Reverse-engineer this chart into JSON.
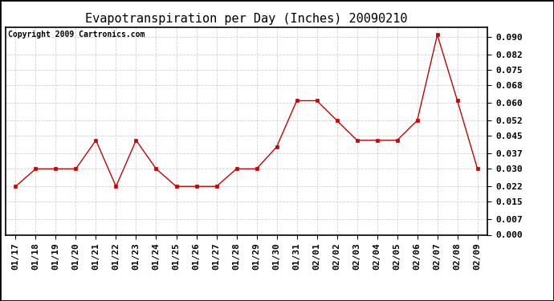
{
  "title": "Evapotranspiration per Day (Inches) 20090210",
  "copyright": "Copyright 2009 Cartronics.com",
  "x_labels": [
    "01/17",
    "01/18",
    "01/19",
    "01/20",
    "01/21",
    "01/22",
    "01/23",
    "01/24",
    "01/25",
    "01/26",
    "01/27",
    "01/28",
    "01/29",
    "01/30",
    "01/31",
    "02/01",
    "02/02",
    "02/03",
    "02/04",
    "02/05",
    "02/06",
    "02/07",
    "02/08",
    "02/09"
  ],
  "y_values": [
    0.022,
    0.03,
    0.03,
    0.03,
    0.043,
    0.022,
    0.043,
    0.03,
    0.022,
    0.022,
    0.022,
    0.03,
    0.03,
    0.04,
    0.061,
    0.061,
    0.052,
    0.043,
    0.043,
    0.043,
    0.052,
    0.091,
    0.061,
    0.03
  ],
  "line_color": "#cc0000",
  "marker": "s",
  "marker_size": 3,
  "bg_color": "#ffffff",
  "plot_bg_color": "#ffffff",
  "grid_color": "#cccccc",
  "y_min": 0.0,
  "y_max": 0.0945,
  "y_ticks": [
    0.0,
    0.007,
    0.015,
    0.022,
    0.03,
    0.037,
    0.045,
    0.052,
    0.06,
    0.068,
    0.075,
    0.082,
    0.09
  ],
  "title_fontsize": 11,
  "copyright_fontsize": 7,
  "tick_fontsize": 8
}
